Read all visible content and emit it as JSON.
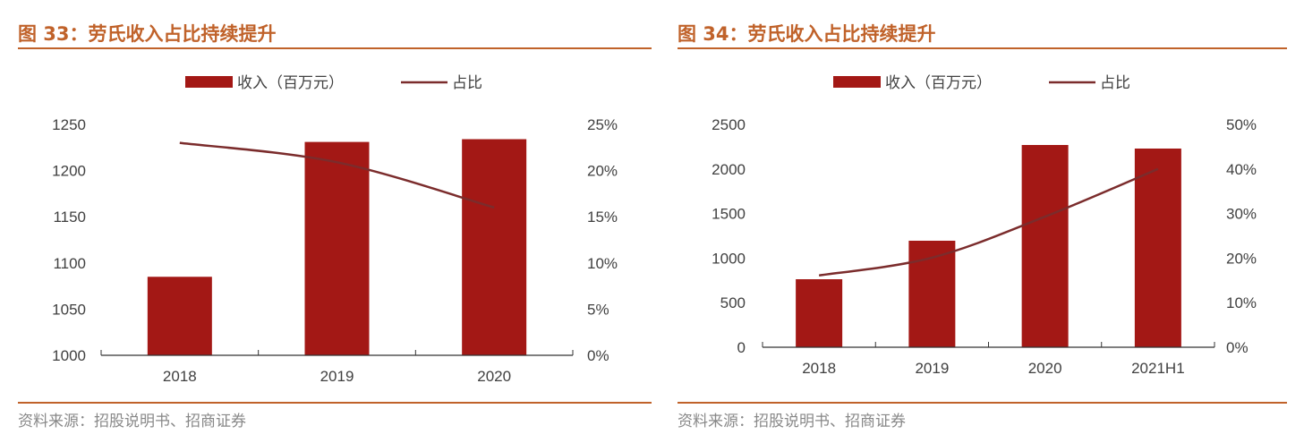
{
  "colors": {
    "bar": "#a31815",
    "line": "#7b2c2c",
    "title": "#c0622a"
  },
  "chart_data": [
    {
      "type": "bar+line",
      "title": "图 33：劳氏收入占比持续提升",
      "categories": [
        "2018",
        "2019",
        "2020"
      ],
      "series": [
        {
          "name": "收入（百万元）",
          "type": "bar",
          "axis": "left",
          "values": [
            1085,
            1231,
            1234
          ]
        },
        {
          "name": "占比",
          "type": "line",
          "axis": "right",
          "values": [
            0.23,
            0.209,
            0.16
          ]
        }
      ],
      "ylim": [
        1000,
        1250
      ],
      "yticks": [
        "1000",
        "1050",
        "1100",
        "1150",
        "1200",
        "1250"
      ],
      "y2lim": [
        0,
        0.25
      ],
      "y2ticks": [
        "0%",
        "5%",
        "10%",
        "15%",
        "20%",
        "25%"
      ],
      "legend": "top",
      "grid": false,
      "source": "资料来源：招股说明书、招商证券"
    },
    {
      "type": "bar+line",
      "title": "图 34：劳氏收入占比持续提升",
      "categories": [
        "2018",
        "2019",
        "2020",
        "2021H1"
      ],
      "series": [
        {
          "name": "收入（百万元）",
          "type": "bar",
          "axis": "left",
          "values": [
            763,
            1195,
            2269,
            2229
          ]
        },
        {
          "name": "占比",
          "type": "line",
          "axis": "right",
          "values": [
            0.161,
            0.201,
            0.293,
            0.4
          ]
        }
      ],
      "ylim": [
        0,
        2500
      ],
      "yticks": [
        "0",
        "500",
        "1000",
        "1500",
        "2000",
        "2500"
      ],
      "y2lim": [
        0,
        0.5
      ],
      "y2ticks": [
        "0%",
        "10%",
        "20%",
        "30%",
        "40%",
        "50%"
      ],
      "legend": "top",
      "grid": false,
      "source": "资料来源：招股说明书、招商证券"
    }
  ]
}
